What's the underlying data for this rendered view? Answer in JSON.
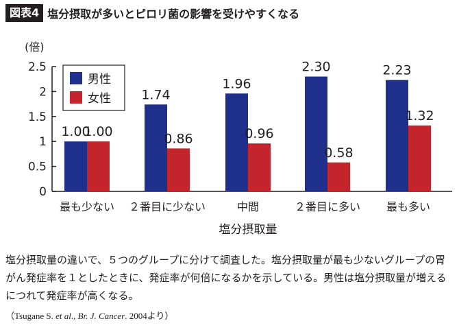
{
  "header": {
    "figure_label": "図表4",
    "title": "塩分摂取が多いとピロリ菌の影響を受けやすくなる"
  },
  "chart_data": {
    "type": "bar",
    "ylabel": "(倍)",
    "xlabel": "塩分摂取量",
    "ylim": [
      0,
      2.5
    ],
    "yticks": [
      "0",
      "0.5",
      "1",
      "1.5",
      "2",
      "2.5"
    ],
    "categories": [
      "最も少ない",
      "２番目に少ない",
      "中間",
      "２番目に多い",
      "最も多い"
    ],
    "series": [
      {
        "name": "男性",
        "color": "#1f2f8c",
        "values": [
          1.0,
          1.74,
          1.96,
          2.3,
          2.23
        ],
        "labels": [
          "1.00",
          "1.74",
          "1.96",
          "2.30",
          "2.23"
        ]
      },
      {
        "name": "女性",
        "color": "#c4242b",
        "values": [
          1.0,
          0.86,
          0.96,
          0.58,
          1.32
        ],
        "labels": [
          "1.00",
          "0.86",
          "0.96",
          "0.58",
          "1.32"
        ]
      }
    ],
    "legend_position": "top-left",
    "grid": false
  },
  "caption": "塩分摂取量の違いで、５つのグループに分けて調査した。塩分摂取量が最も少ないグループの胃がん発症率を１としたときに、発症率が何倍になるかを示している。男性は塩分摂取量が増えるにつれて発症率が高くなる。",
  "source": {
    "open": "（",
    "authors": "Tsugane S. ",
    "etal": "et al",
    "mid": "., ",
    "journal": "Br. J. Cancer",
    "tail": ". 2004より）"
  }
}
